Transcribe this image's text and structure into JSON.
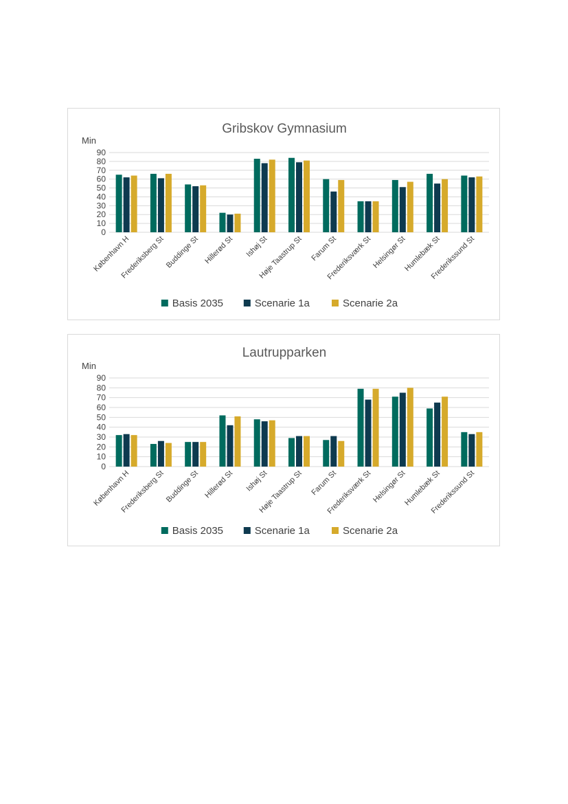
{
  "colors": {
    "basis": "#006b5e",
    "scen1a": "#0e3a4f",
    "scen2a": "#d6aa2b"
  },
  "chart_data": [
    {
      "type": "bar",
      "title": "Gribskov Gymnasium",
      "ylabel": "Min",
      "ylim": [
        0,
        90
      ],
      "yticks": [
        "0",
        "10",
        "20",
        "30",
        "40",
        "50",
        "60",
        "70",
        "80",
        "90"
      ],
      "grid": true,
      "legend": "bottom",
      "categories": [
        "København H",
        "Frederiksberg St",
        "Buddinge St",
        "Hillerød St",
        "Ishøj St",
        "Høje Taastrup St",
        "Farum St",
        "Frederiksværk St",
        "Helsingør St",
        "Humlebæk St",
        "Frederikssund St"
      ],
      "series": [
        {
          "name": "Basis 2035",
          "values": [
            65,
            66,
            54,
            22,
            83,
            84,
            60,
            35,
            59,
            66,
            64
          ]
        },
        {
          "name": "Scenarie 1a",
          "values": [
            62,
            61,
            52,
            20,
            78,
            79,
            46,
            35,
            51,
            55,
            62
          ]
        },
        {
          "name": "Scenarie 2a",
          "values": [
            64,
            66,
            53,
            21,
            82,
            81,
            59,
            35,
            57,
            60,
            63
          ]
        }
      ]
    },
    {
      "type": "bar",
      "title": "Lautrupparken",
      "ylabel": "Min",
      "ylim": [
        0,
        90
      ],
      "yticks": [
        "0",
        "10",
        "20",
        "30",
        "40",
        "50",
        "60",
        "70",
        "80",
        "90"
      ],
      "grid": true,
      "legend": "bottom",
      "categories": [
        "København H",
        "Frederiksberg St",
        "Buddinge St",
        "Hillerød St",
        "Ishøj St",
        "Høje Taastrup St",
        "Farum St",
        "Frederiksværk St",
        "Helsingør St",
        "Humlebæk St",
        "Frederikssund St"
      ],
      "series": [
        {
          "name": "Basis 2035",
          "values": [
            32,
            23,
            25,
            52,
            48,
            29,
            27,
            79,
            71,
            59,
            35
          ]
        },
        {
          "name": "Scenarie 1a",
          "values": [
            33,
            26,
            25,
            42,
            46,
            31,
            31,
            68,
            75,
            65,
            33
          ]
        },
        {
          "name": "Scenarie 2a",
          "values": [
            32,
            24,
            25,
            51,
            47,
            31,
            26,
            79,
            80,
            71,
            35
          ]
        }
      ]
    }
  ]
}
